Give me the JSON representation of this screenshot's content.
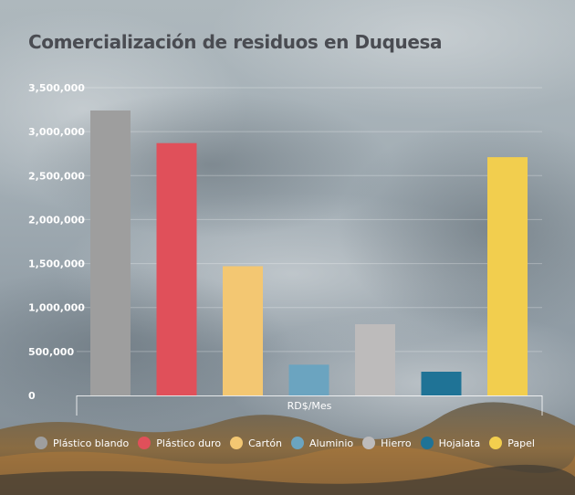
{
  "chart_data": {
    "type": "bar",
    "title": "Comercialización de residuos en Duquesa",
    "xlabel": "RD$/Mes",
    "ylabel": "",
    "ylim": [
      0,
      3500000
    ],
    "yticks": [
      0,
      500000,
      1000000,
      1500000,
      2000000,
      2500000,
      3000000,
      3500000
    ],
    "ytick_labels": [
      "0",
      "500,000",
      "1,000,000",
      "1,500,000",
      "2,000,000",
      "2,500,000",
      "3,000,000",
      "3,500,000"
    ],
    "grid": true,
    "legend_position": "bottom",
    "categories": [
      "Plástico blando",
      "Plástico duro",
      "Cartón",
      "Aluminio",
      "Hierro",
      "Hojalata",
      "Papel"
    ],
    "values": [
      3240000,
      2870000,
      1470000,
      350000,
      810000,
      270000,
      2710000
    ],
    "colors": [
      "#9e9e9e",
      "#e0505a",
      "#f3c772",
      "#6ba4c0",
      "#bdbbbb",
      "#1f7396",
      "#f2ce4e"
    ]
  }
}
